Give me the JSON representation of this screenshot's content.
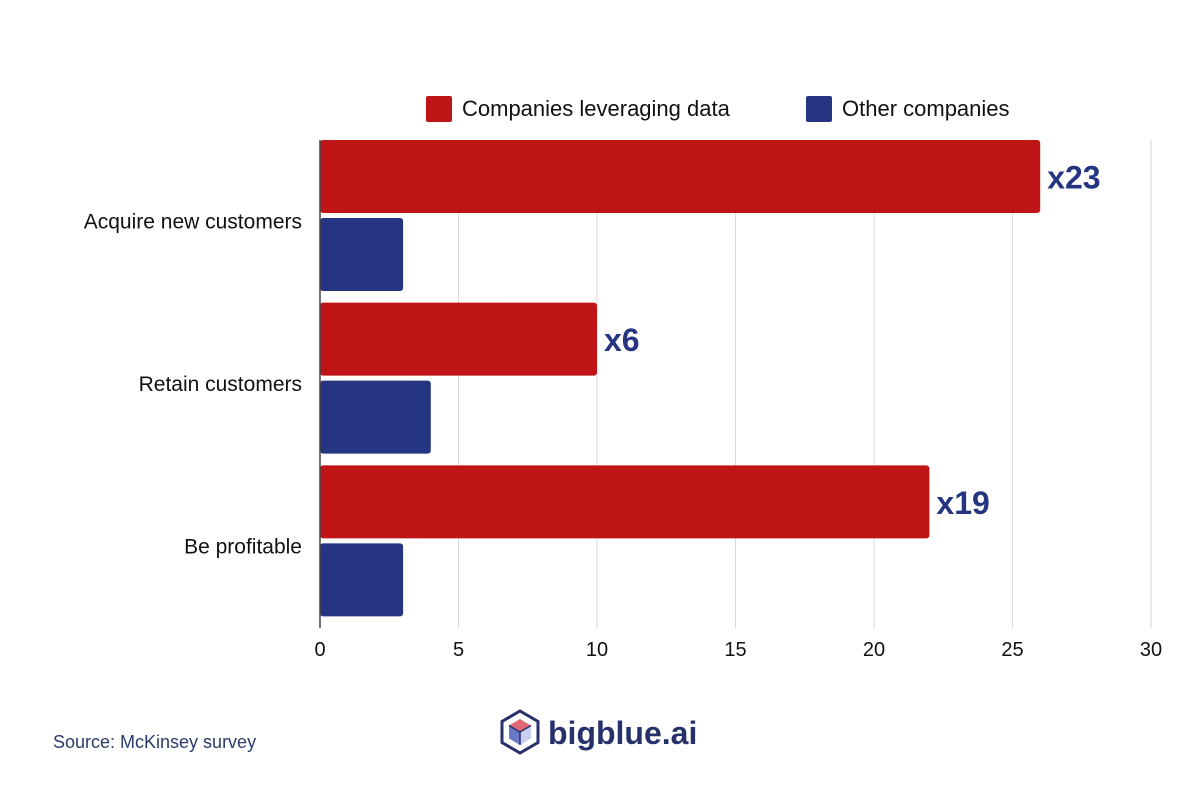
{
  "chart_data": {
    "type": "bar",
    "orientation": "horizontal",
    "categories": [
      "Acquire new customers",
      "Retain customers",
      "Be profitable"
    ],
    "series": [
      {
        "name": "Companies leveraging data",
        "color": "#c01517",
        "values": [
          26,
          10,
          22
        ]
      },
      {
        "name": "Other companies",
        "color": "#253581",
        "values": [
          3,
          4,
          3
        ]
      }
    ],
    "data_labels": [
      "x23",
      "x6",
      "x19"
    ],
    "data_label_color": "#253581",
    "xlim": [
      0,
      30
    ],
    "xticks": [
      0,
      5,
      10,
      15,
      20,
      25,
      30
    ],
    "xlabel": "",
    "ylabel": "",
    "grid": true,
    "legend": "top-right"
  },
  "footer": {
    "source": "Source: McKinsey survey",
    "source_color": "#2b3a6b",
    "brand": "bigblue.ai",
    "brand_color": "#25316b"
  },
  "icons": {
    "logo": "cube-logo-icon"
  }
}
